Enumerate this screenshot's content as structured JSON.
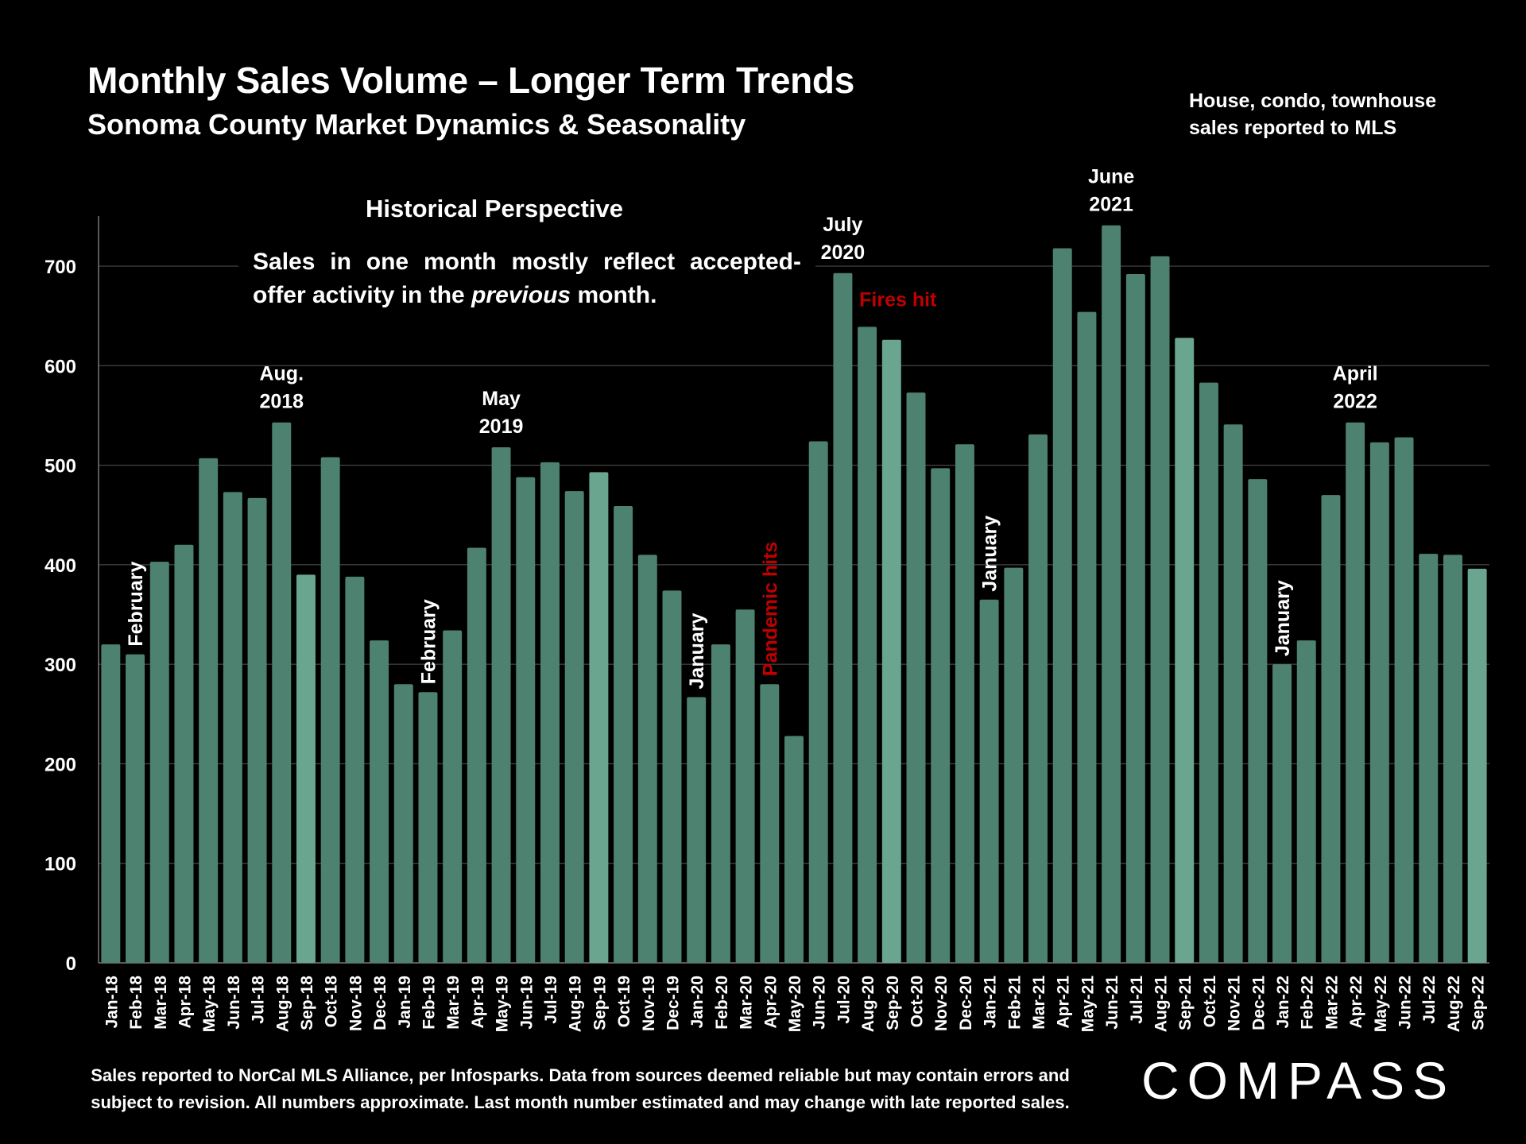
{
  "header": {
    "title": "Monthly Sales Volume – Longer Term Trends",
    "subtitle": "Sonoma County Market Dynamics & Seasonality",
    "note_line1": "House, condo, townhouse",
    "note_line2": "sales reported to MLS"
  },
  "historical": {
    "heading": "Historical Perspective",
    "text_before": "Sales in one month mostly reflect accepted-offer activity in the ",
    "text_emph": "previous",
    "text_after": " month."
  },
  "footer": {
    "line1": "Sales reported to NorCal MLS Alliance, per Infosparks. Data from sources deemed reliable but may contain errors and",
    "line2": "subject to revision. All numbers approximate. Last month number estimated and may change with late reported sales."
  },
  "brand": {
    "logo": "COMPASS"
  },
  "colors": {
    "bar": "#4e8270",
    "bar_highlight": "#6aa590",
    "red_annotation": "#c00000",
    "background": "#000000"
  },
  "chart_data": {
    "type": "bar",
    "title": "Monthly Sales Volume – Longer Term Trends",
    "ylim": [
      0,
      750
    ],
    "yticks": [
      0,
      100,
      200,
      300,
      400,
      500,
      600,
      700
    ],
    "grid": true,
    "categories": [
      "Jan-18",
      "Feb-18",
      "Mar-18",
      "Apr-18",
      "May-18",
      "Jun-18",
      "Jul-18",
      "Aug-18",
      "Sep-18",
      "Oct-18",
      "Nov-18",
      "Dec-18",
      "Jan-19",
      "Feb-19",
      "Mar-19",
      "Apr-19",
      "May-19",
      "Jun-19",
      "Jul-19",
      "Aug-19",
      "Sep-19",
      "Oct-19",
      "Nov-19",
      "Dec-19",
      "Jan-20",
      "Feb-20",
      "Mar-20",
      "Apr-20",
      "May-20",
      "Jun-20",
      "Jul-20",
      "Aug-20",
      "Sep-20",
      "Oct-20",
      "Nov-20",
      "Dec-20",
      "Jan-21",
      "Feb-21",
      "Mar-21",
      "Apr-21",
      "May-21",
      "Jun-21",
      "Jul-21",
      "Aug-21",
      "Sep-21",
      "Oct-21",
      "Nov-21",
      "Dec-21",
      "Jan-22",
      "Feb-22",
      "Mar-22",
      "Apr-22",
      "May-22",
      "Jun-22",
      "Jul-22",
      "Aug-22",
      "Sep-22"
    ],
    "values": [
      320,
      310,
      403,
      420,
      507,
      473,
      467,
      543,
      390,
      508,
      388,
      324,
      280,
      272,
      334,
      417,
      518,
      488,
      503,
      474,
      493,
      459,
      410,
      374,
      267,
      320,
      355,
      280,
      228,
      524,
      693,
      639,
      626,
      573,
      497,
      521,
      365,
      397,
      531,
      718,
      654,
      741,
      692,
      710,
      628,
      583,
      541,
      486,
      300,
      324,
      470,
      543,
      523,
      528,
      411,
      410,
      396
    ],
    "highlight_categories": [
      "Sep-18",
      "Sep-19",
      "Sep-20",
      "Sep-21",
      "Sep-22"
    ],
    "annotations": [
      {
        "category": "Feb-18",
        "text": "February",
        "rotated": true,
        "color": "white"
      },
      {
        "category": "Aug-18",
        "lines": [
          "Aug.",
          "2018"
        ],
        "color": "white"
      },
      {
        "category": "Feb-19",
        "text": "February",
        "rotated": true,
        "color": "white"
      },
      {
        "category": "May-19",
        "lines": [
          "May",
          "2019"
        ],
        "color": "white"
      },
      {
        "category": "Jan-20",
        "text": "January",
        "rotated": true,
        "color": "white"
      },
      {
        "category": "Apr-20",
        "text": "Pandemic hits",
        "rotated": true,
        "color": "red"
      },
      {
        "category": "Jul-20",
        "lines": [
          "July",
          "2020"
        ],
        "color": "white"
      },
      {
        "category": "Aug-20",
        "text": "Fires hit",
        "color": "red"
      },
      {
        "category": "Jan-21",
        "text": "January",
        "rotated": true,
        "color": "white"
      },
      {
        "category": "Jun-21",
        "lines": [
          "June",
          "2021"
        ],
        "color": "white"
      },
      {
        "category": "Jan-22",
        "text": "January",
        "rotated": true,
        "color": "white"
      },
      {
        "category": "Apr-22",
        "lines": [
          "April",
          "2022"
        ],
        "color": "white"
      }
    ]
  }
}
